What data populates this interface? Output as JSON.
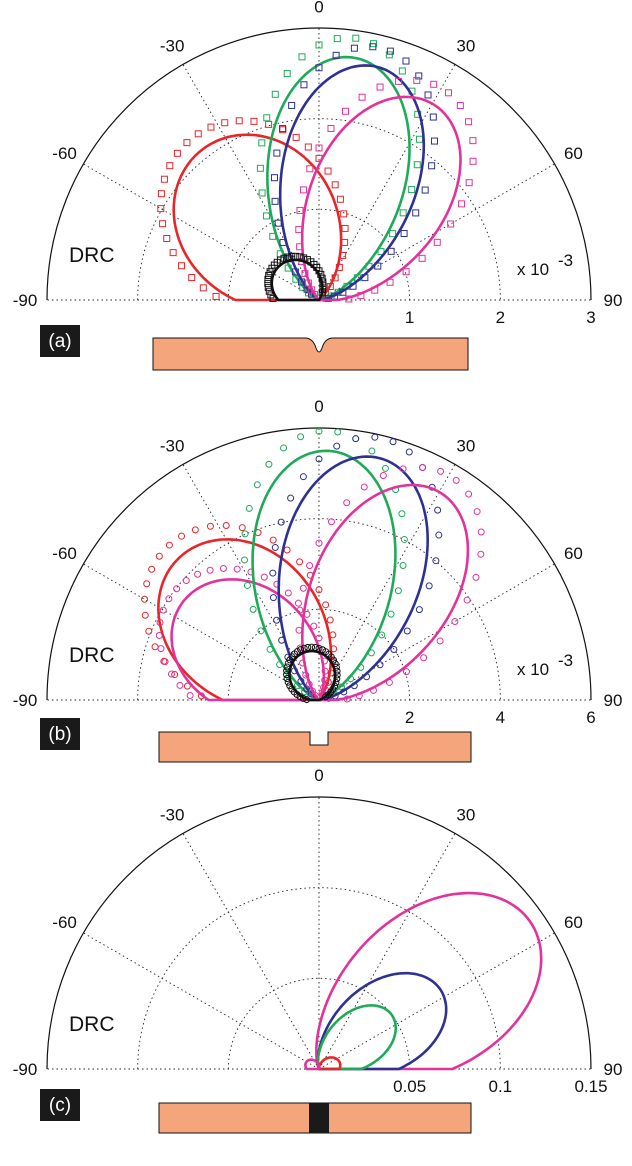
{
  "colors": {
    "red": "#e8262a",
    "green": "#1faa5a",
    "blue": "#2e3192",
    "magenta": "#e2339b",
    "black": "#111111",
    "substrate": "#f4a57c"
  },
  "chart_data": [
    {
      "type": "polar",
      "panel": "(a)",
      "ylabel": "DRC",
      "scale_note": "x 10",
      "scale_exp": "-3",
      "angle_range": [
        -90,
        90
      ],
      "angle_ticks": [
        "-90",
        "-60",
        "-30",
        "0",
        "30",
        "60",
        "90"
      ],
      "radial_range": [
        0,
        3
      ],
      "radial_ticks": [
        "1",
        "2",
        "3"
      ],
      "grid": true,
      "profile": "groove",
      "series": [
        {
          "color": "red",
          "peak_angle": -38,
          "peak_r": 2.1,
          "width": 1.7
        },
        {
          "color": "green",
          "peak_angle": 8,
          "peak_r": 2.7,
          "width": 4.0
        },
        {
          "color": "blue",
          "peak_angle": 14,
          "peak_r": 2.65,
          "width": 4.0
        },
        {
          "color": "magenta",
          "peak_angle": 30,
          "peak_r": 2.5,
          "width": 3.6
        },
        {
          "color": "black",
          "peak_angle": -55,
          "peak_r": 0.58,
          "width": 1.3
        }
      ],
      "markers": "square"
    },
    {
      "type": "polar",
      "panel": "(b)",
      "ylabel": "DRC",
      "scale_note": "x 10",
      "scale_exp": "-3",
      "angle_range": [
        -90,
        90
      ],
      "angle_ticks": [
        "-90",
        "-60",
        "-30",
        "0",
        "30",
        "60",
        "90"
      ],
      "radial_range": [
        0,
        6
      ],
      "radial_ticks": [
        "2",
        "4",
        "6"
      ],
      "grid": true,
      "profile": "ridge",
      "series": [
        {
          "color": "red",
          "peak_angle": -45,
          "peak_r": 4.4,
          "width": 2.1
        },
        {
          "color": "magenta",
          "peak_angle": -55,
          "peak_r": 3.7,
          "width": 2.1
        },
        {
          "color": "green",
          "peak_angle": 2,
          "peak_r": 5.5,
          "width": 4.0
        },
        {
          "color": "blue",
          "peak_angle": 14,
          "peak_r": 5.5,
          "width": 4.0
        },
        {
          "color": "magenta",
          "peak_angle": 30,
          "peak_r": 5.3,
          "width": 3.8
        },
        {
          "color": "black",
          "peak_angle": -15,
          "peak_r": 1.1,
          "width": 1.3
        }
      ],
      "markers": "circle"
    },
    {
      "type": "polar",
      "panel": "(c)",
      "ylabel": "DRC",
      "angle_range": [
        -90,
        90
      ],
      "angle_ticks": [
        "-90",
        "-60",
        "-30",
        "0",
        "30",
        "60",
        "90"
      ],
      "radial_range": [
        0,
        0.15
      ],
      "radial_ticks": [
        "0.05",
        "0.1",
        "0.15"
      ],
      "grid": true,
      "profile": "insert",
      "series": [
        {
          "color": "magenta",
          "peak_angle": 55,
          "peak_r": 0.142,
          "width": 3.3
        },
        {
          "color": "blue",
          "peak_angle": 57,
          "peak_r": 0.08,
          "width": 3.4
        },
        {
          "color": "green",
          "peak_angle": 53,
          "peak_r": 0.05,
          "width": 3.4
        },
        {
          "color": "red",
          "peak_angle": 75,
          "peak_r": 0.012,
          "width": 2.0
        },
        {
          "color": "magenta",
          "peak_angle": -65,
          "peak_r": 0.008,
          "width": 1.8
        }
      ],
      "markers": "none"
    }
  ]
}
